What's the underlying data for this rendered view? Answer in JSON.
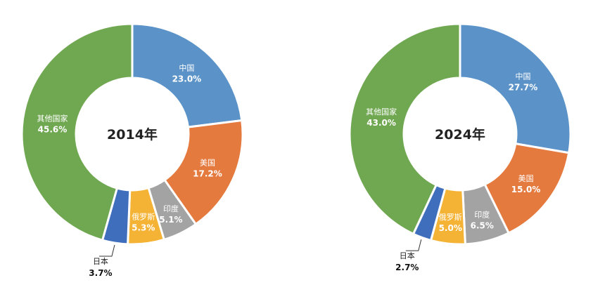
{
  "chart_data": [
    {
      "type": "pie",
      "title": "2014年",
      "slices": [
        {
          "label": "中国",
          "value": 23.0,
          "display": "23.0%",
          "color": "#5b93c8"
        },
        {
          "label": "美国",
          "value": 17.2,
          "display": "17.2%",
          "color": "#e57a3f"
        },
        {
          "label": "印度",
          "value": 5.1,
          "display": "5.1%",
          "color": "#a3a3a3"
        },
        {
          "label": "俄罗斯",
          "value": 5.3,
          "display": "5.3%",
          "color": "#f5b335"
        },
        {
          "label": "日本",
          "value": 3.7,
          "display": "3.7%",
          "color": "#3f6fbc"
        },
        {
          "label": "其他国家",
          "value": 45.6,
          "display": "45.6%",
          "color": "#70a852"
        }
      ]
    },
    {
      "type": "pie",
      "title": "2024年",
      "slices": [
        {
          "label": "中国",
          "value": 27.7,
          "display": "27.7%",
          "color": "#5b93c8"
        },
        {
          "label": "美国",
          "value": 15.0,
          "display": "15.0%",
          "color": "#e57a3f"
        },
        {
          "label": "印度",
          "value": 6.5,
          "display": "6.5%",
          "color": "#a3a3a3"
        },
        {
          "label": "俄罗斯",
          "value": 5.0,
          "display": "5.0%",
          "color": "#f5b335"
        },
        {
          "label": "日本",
          "value": 2.7,
          "display": "2.7%",
          "color": "#3f6fbc"
        },
        {
          "label": "其他国家",
          "value": 43.0,
          "display": "43.0%",
          "color": "#70a852"
        }
      ]
    }
  ]
}
